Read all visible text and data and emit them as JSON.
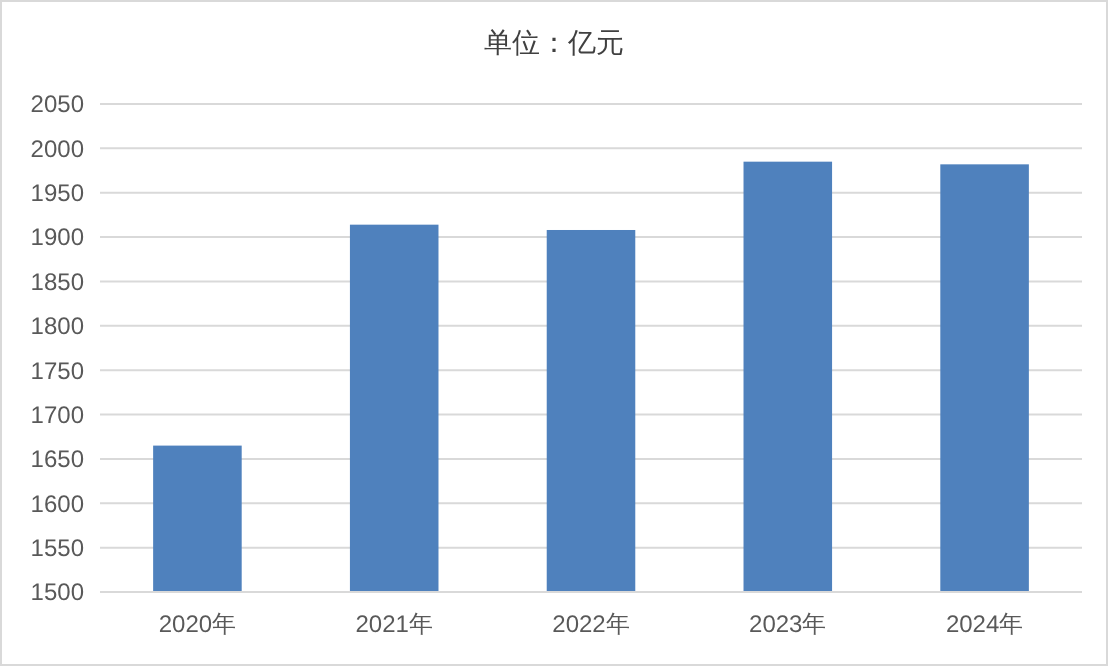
{
  "chart_data": {
    "type": "bar",
    "title": "单位：亿元",
    "categories": [
      "2020年",
      "2021年",
      "2022年",
      "2023年",
      "2024年"
    ],
    "values": [
      1665,
      1914,
      1908,
      1985,
      1982
    ],
    "color": "#4f81bd",
    "ylim": [
      1500,
      2050
    ],
    "yticks": [
      1500,
      1550,
      1600,
      1650,
      1700,
      1750,
      1800,
      1850,
      1900,
      1950,
      2000,
      2050
    ],
    "grid": "y"
  }
}
